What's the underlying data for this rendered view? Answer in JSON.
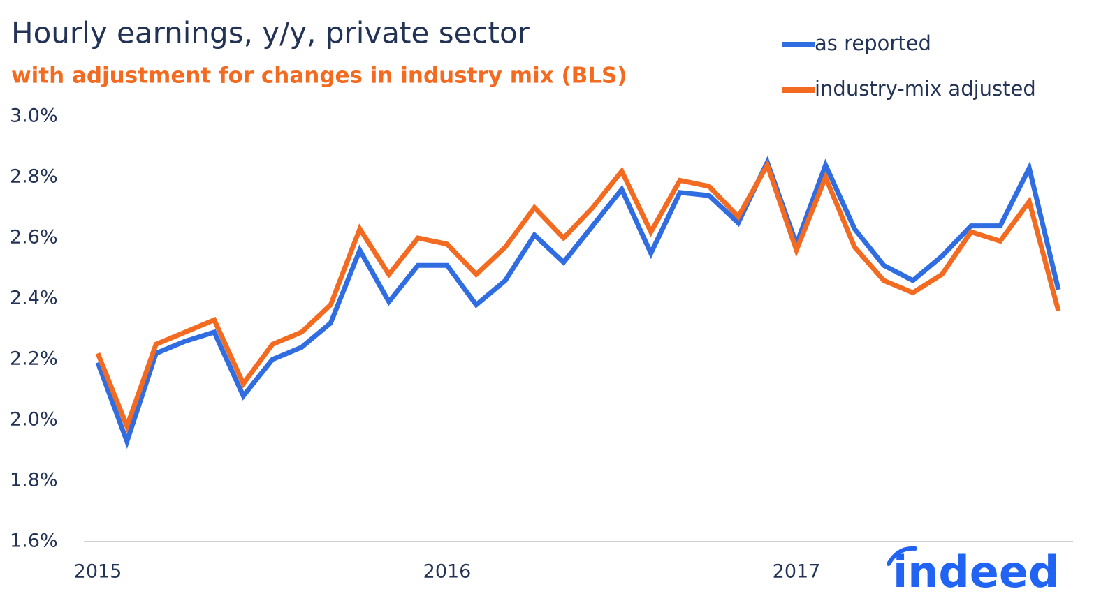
{
  "chart_data": {
    "type": "line",
    "title": "Hourly earnings, y/y, private sector",
    "subtitle": "with adjustment for changes in industry mix (BLS)",
    "logo": "indeed",
    "categories": [
      "2015",
      null,
      null,
      null,
      null,
      null,
      null,
      null,
      null,
      null,
      null,
      null,
      "2016",
      null,
      null,
      null,
      null,
      null,
      null,
      null,
      null,
      null,
      null,
      null,
      "2017",
      null,
      null,
      null,
      null,
      null,
      null,
      null,
      null,
      null
    ],
    "series": [
      {
        "name": "as reported",
        "color": "#2f6de1",
        "values": [
          2.19,
          1.93,
          2.22,
          2.26,
          2.29,
          2.08,
          2.2,
          2.24,
          2.32,
          2.56,
          2.39,
          2.51,
          2.51,
          2.38,
          2.46,
          2.61,
          2.52,
          2.64,
          2.76,
          2.55,
          2.75,
          2.74,
          2.65,
          2.85,
          2.58,
          2.84,
          2.63,
          2.51,
          2.46,
          2.54,
          2.64,
          2.64,
          2.83,
          2.43
        ]
      },
      {
        "name": "industry-mix adjusted",
        "color": "#f26b21",
        "values": [
          2.22,
          1.98,
          2.25,
          2.29,
          2.33,
          2.12,
          2.25,
          2.29,
          2.38,
          2.63,
          2.48,
          2.6,
          2.58,
          2.48,
          2.57,
          2.7,
          2.6,
          2.7,
          2.82,
          2.62,
          2.79,
          2.77,
          2.67,
          2.84,
          2.56,
          2.8,
          2.57,
          2.46,
          2.42,
          2.48,
          2.62,
          2.59,
          2.72,
          2.36
        ]
      }
    ],
    "ylim": [
      1.6,
      3.0
    ],
    "yticks": [
      {
        "value": 1.6,
        "label": "1.6%"
      },
      {
        "value": 1.8,
        "label": "1.8%"
      },
      {
        "value": 2.0,
        "label": "2.0%"
      },
      {
        "value": 2.2,
        "label": "2.2%"
      },
      {
        "value": 2.4,
        "label": "2.4%"
      },
      {
        "value": 2.6,
        "label": "2.6%"
      },
      {
        "value": 2.8,
        "label": "2.8%"
      },
      {
        "value": 3.0,
        "label": "3.0%"
      }
    ],
    "grid": false,
    "legend": "top-right"
  }
}
